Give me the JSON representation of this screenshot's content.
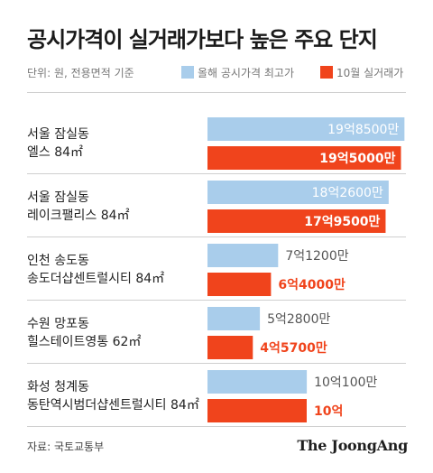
{
  "title": "공시가격이 실거래가보다 높은 주요 단지",
  "unit_note": "단위: 원, 전용면적 기준",
  "source": "자료: 국토교통부",
  "brand": "The JoongAng",
  "colors": {
    "official": "#a9cdeb",
    "actual": "#f0441c",
    "official_text": "#ffffff",
    "actual_text": "#ffffff",
    "outside_official": "#555555",
    "outside_actual": "#f0441c",
    "separator": "#cfcfcf"
  },
  "chart_data": {
    "type": "bar",
    "orientation": "horizontal",
    "title": "공시가격이 실거래가보다 높은 주요 단지",
    "categories": [
      [
        "서울 잠실동",
        "엘스 84㎡"
      ],
      [
        "서울 잠실동",
        "레이크팰리스 84㎡"
      ],
      [
        "인천 송도동",
        "송도더샵센트럴시티 84㎡"
      ],
      [
        "수원 망포동",
        "힐스테이트영통 62㎡"
      ],
      [
        "화성 청계동",
        "동탄역시범더샵센트럴시티 84㎡"
      ]
    ],
    "series": [
      {
        "name": "올해 공시가격 최고가",
        "values": [
          1985000000,
          1826000000,
          712000000,
          528000000,
          1001000000
        ],
        "labels": [
          "19억8500만",
          "18억2600만",
          "7억1200만",
          "5억2800만",
          "10억100만"
        ]
      },
      {
        "name": "10월 실거래가",
        "values": [
          1950000000,
          1795000000,
          640000000,
          457000000,
          1000000000
        ],
        "labels": [
          "19억5000만",
          "17억9500만",
          "6억4000만",
          "4억5700만",
          "10억"
        ]
      }
    ],
    "xlim": [
      0,
      2000000000
    ],
    "legend": "top"
  }
}
